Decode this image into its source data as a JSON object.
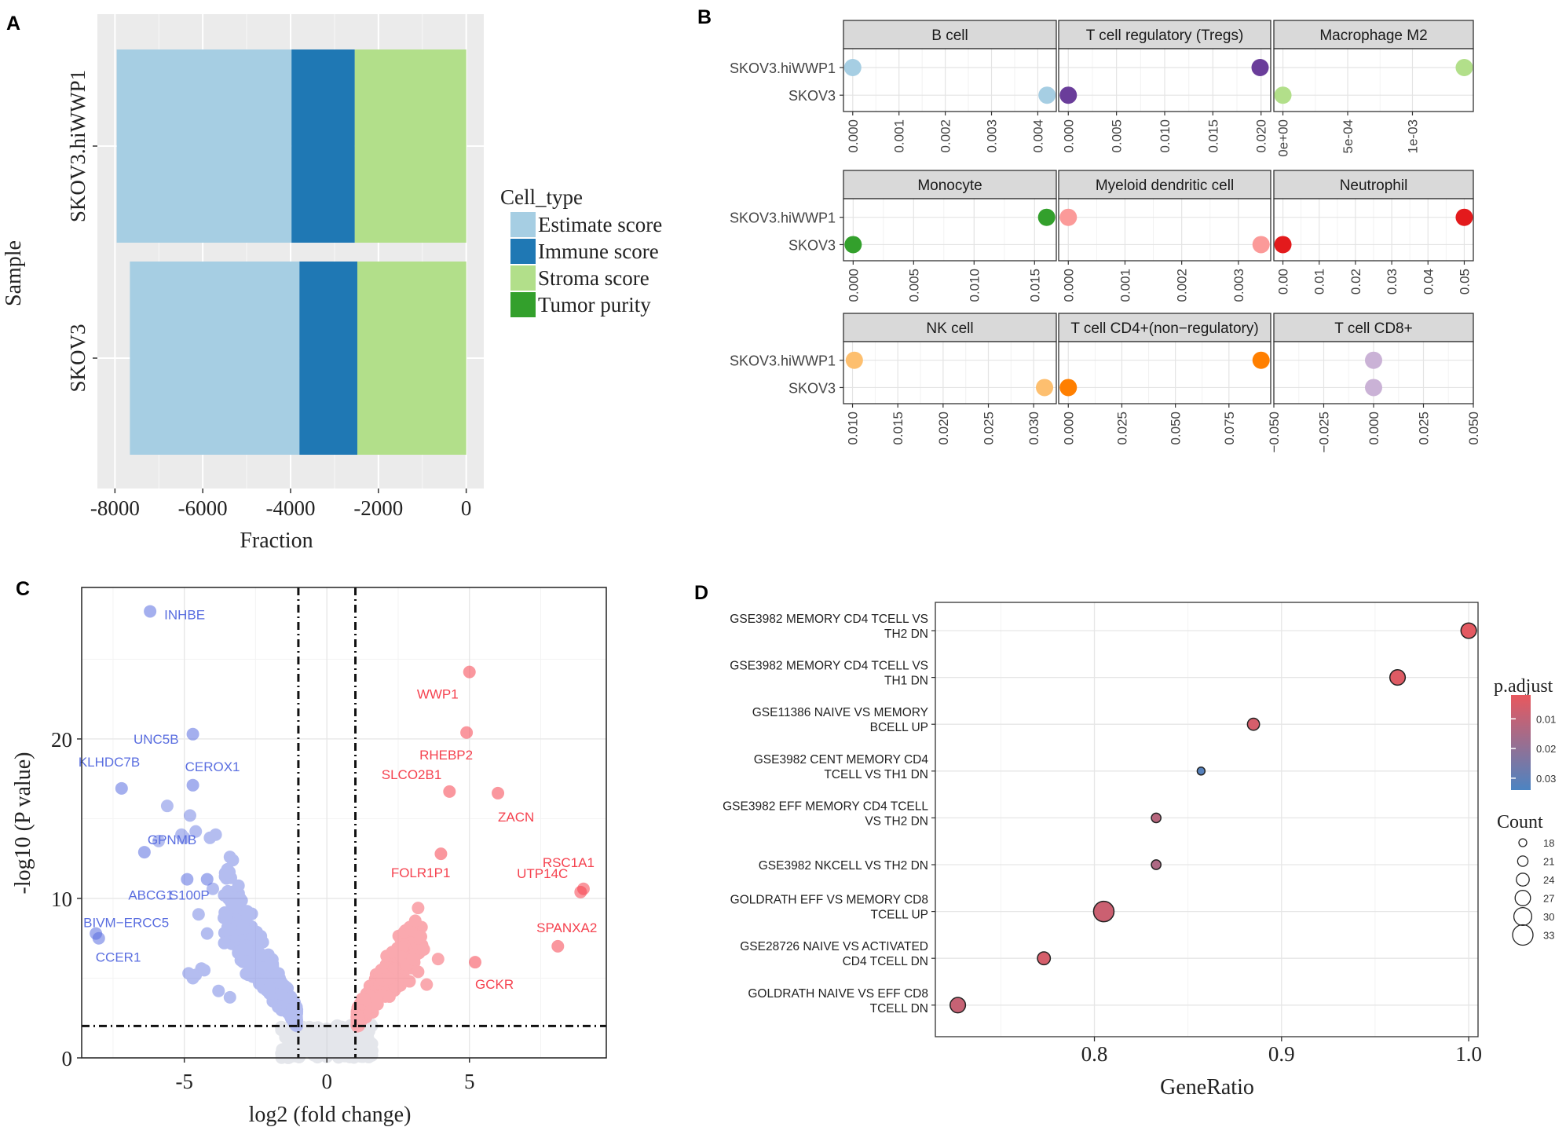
{
  "chart_data": [
    {
      "panel": "A",
      "type": "bar",
      "orientation": "horizontal",
      "stacked": true,
      "categories": [
        "SKOV3.hiWWP1",
        "SKOV3"
      ],
      "series": [
        {
          "name": "Estimate score",
          "color": "#a6cee3",
          "values": [
            -3980,
            -3860
          ]
        },
        {
          "name": "Immune score",
          "color": "#1f78b4",
          "values": [
            -1440,
            -1320
          ]
        },
        {
          "name": "Stroma score",
          "color": "#b2df8a",
          "values": [
            -2540,
            -2480
          ]
        },
        {
          "name": "Tumor purity",
          "color": "#33a02c",
          "values": [
            1,
            1
          ]
        }
      ],
      "xlabel": "Fraction",
      "ylabel": "Sample",
      "xlim": [
        -8400,
        400
      ],
      "xticks": [
        -8000,
        -6000,
        -4000,
        -2000,
        0
      ],
      "xtick_labels": [
        "-8000",
        "-6000",
        "-4000",
        "-2000",
        "0"
      ],
      "legend_title": "Cell_type",
      "legend_position": "right",
      "grid": true
    },
    {
      "panel": "B",
      "type": "scatter",
      "layout": "facet-grid 3x3",
      "categories": [
        "SKOV3.hiWWP1",
        "SKOV3"
      ],
      "facets": [
        {
          "title": "B cell",
          "color": "#a6cee3",
          "xlim": [
            -0.0002,
            0.0044
          ],
          "ticks": [
            "0.000",
            "0.001",
            "0.002",
            "0.003",
            "0.004"
          ],
          "values": [
            0.0,
            0.0042
          ]
        },
        {
          "title": "T cell regulatory (Tregs)",
          "color": "#6a3d9a",
          "xlim": [
            -0.001,
            0.021
          ],
          "ticks": [
            "0.000",
            "0.005",
            "0.010",
            "0.015",
            "0.020"
          ],
          "values": [
            0.0199,
            0.0
          ]
        },
        {
          "title": "Macrophage M2",
          "color": "#b2df8a",
          "xlim": [
            -7e-05,
            0.00147
          ],
          "ticks": [
            "0e+00",
            "5e-04",
            "1e-03"
          ],
          "tick_values": [
            0,
            0.0005,
            0.001
          ],
          "values": [
            0.0014,
            0.0
          ]
        },
        {
          "title": "Monocyte",
          "color": "#33a02c",
          "xlim": [
            -0.0008,
            0.0168
          ],
          "ticks": [
            "0.000",
            "0.005",
            "0.010",
            "0.015"
          ],
          "values": [
            0.016,
            0.0
          ]
        },
        {
          "title": "Myeloid dendritic cell",
          "color": "#fb9a99",
          "xlim": [
            -0.00017,
            0.00357
          ],
          "ticks": [
            "0.000",
            "0.001",
            "0.002",
            "0.003"
          ],
          "values": [
            0.0,
            0.0034
          ]
        },
        {
          "title": "Neutrophil",
          "color": "#e31a1c",
          "xlim": [
            -0.0025,
            0.0525
          ],
          "ticks": [
            "0.00",
            "0.01",
            "0.02",
            "0.03",
            "0.04",
            "0.05"
          ],
          "values": [
            0.05,
            0.0
          ]
        },
        {
          "title": "NK cell",
          "color": "#fdbf6f",
          "xlim": [
            0.009,
            0.0325
          ],
          "ticks": [
            "0.010",
            "0.015",
            "0.020",
            "0.025",
            "0.030"
          ],
          "values": [
            0.0102,
            0.0312
          ]
        },
        {
          "title": "T cell CD4+(non−regulatory)",
          "color": "#ff7f00",
          "xlim": [
            -0.0045,
            0.0945
          ],
          "ticks": [
            "0.000",
            "0.025",
            "0.050",
            "0.075"
          ],
          "values": [
            0.09,
            0.0
          ]
        },
        {
          "title": "T cell CD8+",
          "color": "#cab2d6",
          "xlim": [
            -0.05,
            0.05
          ],
          "ticks": [
            "−0.050",
            "−0.025",
            "0.000",
            "0.025",
            "0.050"
          ],
          "values": [
            0.0,
            0.0
          ]
        }
      ],
      "grid": true
    },
    {
      "panel": "C",
      "type": "scatter",
      "subtype": "volcano",
      "xlabel": "log2 (fold change)",
      "ylabel": "-log10 (P value)",
      "xlim": [
        -8.6,
        9.8
      ],
      "ylim": [
        0,
        29.5
      ],
      "xticks": [
        -5,
        0,
        5
      ],
      "yticks": [
        0,
        10,
        20
      ],
      "thresholds": {
        "x": [
          -1,
          1
        ],
        "y": 2
      },
      "labeled_points": [
        {
          "label": "INHBE",
          "x": -6.2,
          "y": 28.0,
          "group": "down"
        },
        {
          "label": "UNC5B",
          "x": -4.7,
          "y": 20.3,
          "group": "down"
        },
        {
          "label": "CEROX1",
          "x": -4.7,
          "y": 17.1,
          "group": "down"
        },
        {
          "label": "KLHDC7B",
          "x": -7.2,
          "y": 16.9,
          "group": "down"
        },
        {
          "label": "GPNMB",
          "x": -6.4,
          "y": 12.9,
          "group": "down"
        },
        {
          "label": "ABCG1",
          "x": -4.9,
          "y": 11.2,
          "group": "down"
        },
        {
          "label": "S100P",
          "x": -4.2,
          "y": 11.2,
          "group": "down"
        },
        {
          "label": "BIVM−ERCC5",
          "x": -8.1,
          "y": 7.8,
          "group": "down"
        },
        {
          "label": "CCER1",
          "x": -8.0,
          "y": 7.5,
          "group": "down"
        },
        {
          "label": "WWP1",
          "x": 5.0,
          "y": 24.2,
          "group": "up"
        },
        {
          "label": "RHEBP2",
          "x": 4.9,
          "y": 20.4,
          "group": "up"
        },
        {
          "label": "SLCO2B1",
          "x": 4.3,
          "y": 16.7,
          "group": "up"
        },
        {
          "label": "ZACN",
          "x": 6.0,
          "y": 16.6,
          "group": "up"
        },
        {
          "label": "FOLR1P1",
          "x": 4.0,
          "y": 12.8,
          "group": "up"
        },
        {
          "label": "RSC1A1",
          "x": 9.0,
          "y": 10.6,
          "group": "up"
        },
        {
          "label": "UTP14C",
          "x": 8.9,
          "y": 10.4,
          "group": "up"
        },
        {
          "label": "SPANXA2",
          "x": 8.1,
          "y": 7.0,
          "group": "up"
        },
        {
          "label": "GCKR",
          "x": 5.2,
          "y": 6.0,
          "group": "up"
        }
      ],
      "colors": {
        "up": "#f5424f",
        "down": "#5a6ee0",
        "ns": "#c4c8d4"
      },
      "grid": true
    },
    {
      "panel": "D",
      "type": "scatter",
      "subtype": "dotplot",
      "xlabel": "GeneRatio",
      "xlim": [
        0.715,
        1.005
      ],
      "xticks": [
        0.8,
        0.9,
        1.0
      ],
      "xtick_labels": [
        "0.8",
        "0.9",
        "1.0"
      ],
      "terms": [
        {
          "label": [
            "GSE3982 MEMORY CD4 TCELL VS",
            "TH2 DN"
          ],
          "x": 1.0,
          "count": 27,
          "padj": 0.003
        },
        {
          "label": [
            "GSE3982 MEMORY CD4 TCELL VS",
            "TH1 DN"
          ],
          "x": 0.962,
          "count": 27,
          "padj": 0.004
        },
        {
          "label": [
            "GSE11386 NAIVE VS MEMORY",
            "BCELL UP"
          ],
          "x": 0.885,
          "count": 23,
          "padj": 0.006
        },
        {
          "label": [
            "GSE3982 CENT MEMORY CD4",
            "TCELL VS TH1 DN"
          ],
          "x": 0.857,
          "count": 18,
          "padj": 0.032
        },
        {
          "label": [
            "GSE3982 EFF MEMORY CD4 TCELL",
            "VS TH2 DN"
          ],
          "x": 0.833,
          "count": 20,
          "padj": 0.012
        },
        {
          "label": [
            "GSE3982 NKCELL VS TH2 DN"
          ],
          "x": 0.833,
          "count": 20,
          "padj": 0.014
        },
        {
          "label": [
            "GOLDRATH EFF VS MEMORY CD8",
            "TCELL UP"
          ],
          "x": 0.805,
          "count": 33,
          "padj": 0.008
        },
        {
          "label": [
            "GSE28726 NAIVE VS ACTIVATED",
            "CD4 TCELL DN"
          ],
          "x": 0.773,
          "count": 24,
          "padj": 0.006
        },
        {
          "label": [
            "GOLDRATH NAIVE VS EFF CD8",
            "TCELL DN"
          ],
          "x": 0.727,
          "count": 27,
          "padj": 0.009
        }
      ],
      "color_legend": {
        "title": "p.adjust",
        "ticks": [
          "0.01",
          "0.02",
          "0.03"
        ],
        "tick_values": [
          0.01,
          0.02,
          0.03
        ],
        "range": [
          0.002,
          0.034
        ],
        "low_color": "#e8585e",
        "high_color": "#4c84c2"
      },
      "size_legend": {
        "title": "Count",
        "values": [
          18,
          21,
          24,
          27,
          30,
          33
        ]
      },
      "grid": true
    }
  ],
  "panel_labels": [
    "A",
    "B",
    "C",
    "D"
  ]
}
